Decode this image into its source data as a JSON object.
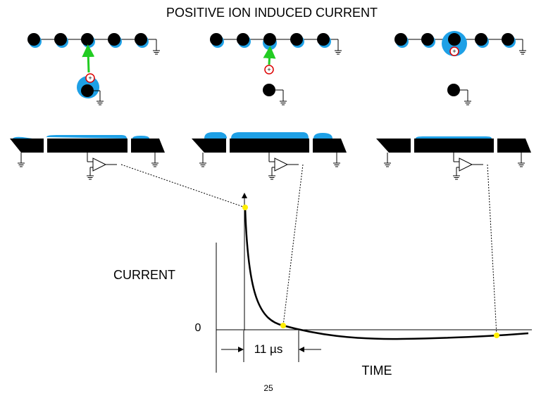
{
  "header": {
    "title": "POSITIVE ION INDUCED CURRENT"
  },
  "ions": [
    {
      "label": "+"
    },
    {
      "label": "+"
    },
    {
      "label": "+"
    }
  ],
  "graph": {
    "y_label": "CURRENT",
    "zero_label": "0",
    "interval_label": "11 µs",
    "x_label": "TIME"
  },
  "footer": {
    "page_number": "25"
  }
}
